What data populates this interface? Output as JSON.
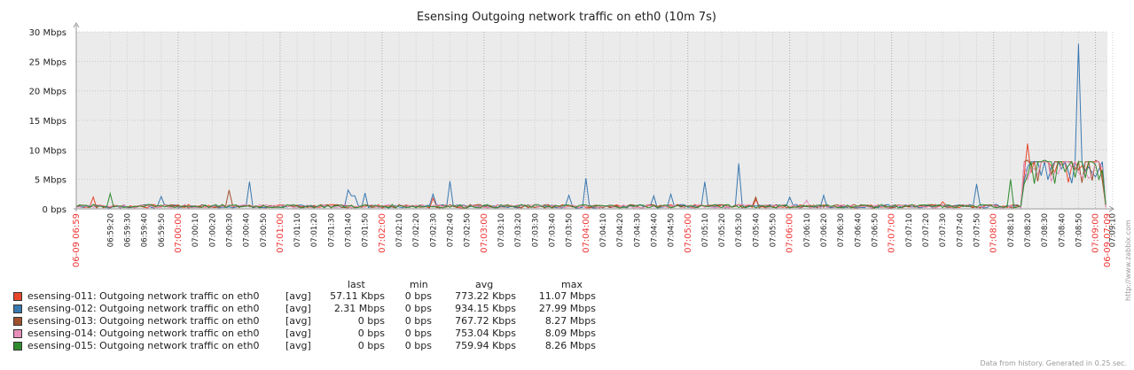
{
  "chart_data": {
    "type": "line",
    "title": "Esensing Outgoing network traffic on eth0 (10m 7s)",
    "y_ticks": [
      "0 bps",
      "5 Mbps",
      "10 Mbps",
      "15 Mbps",
      "20 Mbps",
      "25 Mbps",
      "30 Mbps"
    ],
    "ylim": [
      0,
      30
    ],
    "y_unit": "Mbps",
    "x_start_label": "06-09 06:59",
    "x_end_label": "06-09 07:09",
    "x_ticks": [
      "06:59:20",
      "06:59:30",
      "06:59:40",
      "06:59:50",
      "07:00:00",
      "07:00:10",
      "07:00:20",
      "07:00:30",
      "07:00:40",
      "07:00:50",
      "07:01:00",
      "07:01:10",
      "07:01:20",
      "07:01:30",
      "07:01:40",
      "07:01:50",
      "07:02:00",
      "07:02:10",
      "07:02:20",
      "07:02:30",
      "07:02:40",
      "07:02:50",
      "07:03:00",
      "07:03:10",
      "07:03:20",
      "07:03:30",
      "07:03:40",
      "07:03:50",
      "07:04:00",
      "07:04:10",
      "07:04:20",
      "07:04:30",
      "07:04:40",
      "07:04:50",
      "07:05:00",
      "07:05:10",
      "07:05:20",
      "07:05:30",
      "07:05:40",
      "07:05:50",
      "07:06:00",
      "07:06:10",
      "07:06:20",
      "07:06:30",
      "07:06:40",
      "07:06:50",
      "07:07:00",
      "07:07:10",
      "07:07:20",
      "07:07:30",
      "07:07:40",
      "07:07:50",
      "07:08:00",
      "07:08:10",
      "07:08:20",
      "07:08:30",
      "07:08:40",
      "07:08:50",
      "07:09:00",
      "07:09:10"
    ],
    "major_x_ticks": [
      "07:00:00",
      "07:01:00",
      "07:02:00",
      "07:03:00",
      "07:04:00",
      "07:05:00",
      "07:06:00",
      "07:07:00",
      "07:08:00",
      "07:09:00"
    ],
    "grid": true,
    "legend_position": "bottom-left",
    "series": [
      {
        "name": "esensing-011: Outgoing network traffic on eth0",
        "color": "#e8472b",
        "spikes": [
          [
            "06:59:10",
            2.0
          ],
          [
            "07:02:30",
            1.8
          ],
          [
            "07:05:40",
            1.6
          ],
          [
            "07:07:30",
            1.2
          ],
          [
            "07:08:20",
            11.07
          ]
        ]
      },
      {
        "name": "esensing-012: Outgoing network traffic on eth0",
        "color": "#3a78b0",
        "spikes": [
          [
            "06:59:50",
            2.1
          ],
          [
            "07:00:42",
            4.6
          ],
          [
            "07:01:40",
            3.2
          ],
          [
            "07:01:43",
            2.2
          ],
          [
            "07:01:50",
            2.7
          ],
          [
            "07:02:30",
            2.5
          ],
          [
            "07:02:40",
            4.7
          ],
          [
            "07:03:50",
            2.3
          ],
          [
            "07:04:00",
            5.2
          ],
          [
            "07:04:40",
            2.2
          ],
          [
            "07:04:50",
            2.5
          ],
          [
            "07:05:10",
            4.6
          ],
          [
            "07:05:30",
            7.7
          ],
          [
            "07:06:00",
            2.0
          ],
          [
            "07:06:20",
            2.3
          ],
          [
            "07:07:50",
            4.2
          ],
          [
            "07:08:50",
            27.99
          ],
          [
            "07:09:10",
            2.1
          ]
        ]
      },
      {
        "name": "esensing-013: Outgoing network traffic on eth0",
        "color": "#a0522d",
        "spikes": [
          [
            "07:00:30",
            3.2
          ],
          [
            "07:05:40",
            2.0
          ],
          [
            "07:08:20",
            8.27
          ],
          [
            "07:09:00",
            8.2
          ]
        ]
      },
      {
        "name": "esensing-014: Outgoing network traffic on eth0",
        "color": "#e78fb9",
        "spikes": [
          [
            "07:06:10",
            1.5
          ],
          [
            "07:08:40",
            7.5
          ]
        ]
      },
      {
        "name": "esensing-015: Outgoing network traffic on eth0",
        "color": "#2e8a2e",
        "spikes": [
          [
            "06:59:20",
            2.6
          ],
          [
            "07:08:10",
            5.0
          ],
          [
            "07:08:30",
            8.26
          ]
        ]
      }
    ],
    "plateau": {
      "start": "07:08:18",
      "end": "07:09:05",
      "level": 7.5,
      "series_top": [
        [
          "07:08:20",
          8.0
        ],
        [
          "07:09:00",
          8.0
        ]
      ]
    }
  },
  "legend": {
    "headers": {
      "last": "last",
      "min": "min",
      "avg": "avg",
      "max": "max"
    },
    "rows": [
      {
        "name": "esensing-011: Outgoing network traffic on eth0",
        "fn": "[avg]",
        "last": "57.11 Kbps",
        "min": "0 bps",
        "avg": "773.22 Kbps",
        "max": "11.07 Mbps",
        "color": "#e8472b"
      },
      {
        "name": "esensing-012: Outgoing network traffic on eth0",
        "fn": "[avg]",
        "last": "2.31 Mbps",
        "min": "0 bps",
        "avg": "934.15 Kbps",
        "max": "27.99 Mbps",
        "color": "#3a78b0"
      },
      {
        "name": "esensing-013: Outgoing network traffic on eth0",
        "fn": "[avg]",
        "last": "0 bps",
        "min": "0 bps",
        "avg": "767.72 Kbps",
        "max": "8.27 Mbps",
        "color": "#a0522d"
      },
      {
        "name": "esensing-014: Outgoing network traffic on eth0",
        "fn": "[avg]",
        "last": "0 bps",
        "min": "0 bps",
        "avg": "753.04 Kbps",
        "max": "8.09 Mbps",
        "color": "#e78fb9"
      },
      {
        "name": "esensing-015: Outgoing network traffic on eth0",
        "fn": "[avg]",
        "last": "0 bps",
        "min": "0 bps",
        "avg": "759.94 Kbps",
        "max": "8.26 Mbps",
        "color": "#2e8a2e"
      }
    ]
  },
  "side_credit": "http://www.zabbix.com",
  "footer": "Data from history. Generated in 0.25 sec."
}
